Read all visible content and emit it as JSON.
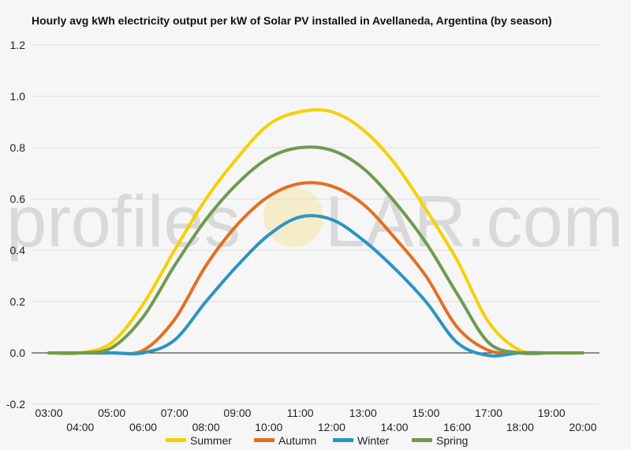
{
  "watermark": {
    "text_left": "profiles",
    "text_right": "LAR.com"
  },
  "chart_data": {
    "type": "line",
    "title": "Hourly avg kWh electricity output per kW of Solar PV installed in Avellaneda, Argentina (by season)",
    "xlabel": "",
    "ylabel": "",
    "x": [
      "03:00",
      "04:00",
      "05:00",
      "06:00",
      "07:00",
      "08:00",
      "09:00",
      "10:00",
      "11:00",
      "12:00",
      "13:00",
      "14:00",
      "15:00",
      "16:00",
      "17:00",
      "18:00",
      "19:00",
      "20:00"
    ],
    "x_tick_labels": [
      "03:00",
      "04:00",
      "05:00",
      "06:00",
      "07:00",
      "08:00",
      "09:00",
      "10:00",
      "11:00",
      "12:00",
      "13:00",
      "14:00",
      "15:00",
      "16:00",
      "17:00",
      "18:00",
      "19:00",
      "20:00"
    ],
    "ylim": [
      -0.2,
      1.2
    ],
    "y_ticks": [
      "-0.2",
      "0.0",
      "0.2",
      "0.4",
      "0.6",
      "0.8",
      "1.0",
      "1.2"
    ],
    "grid": true,
    "legend_position": "bottom",
    "series": [
      {
        "name": "Summer",
        "color": "#f7d000",
        "values": [
          0,
          0,
          0.04,
          0.19,
          0.4,
          0.6,
          0.76,
          0.89,
          0.94,
          0.94,
          0.87,
          0.74,
          0.56,
          0.36,
          0.12,
          0.01,
          0,
          0
        ]
      },
      {
        "name": "Autumn",
        "color": "#e36f22",
        "values": [
          0,
          0,
          0,
          0.01,
          0.13,
          0.34,
          0.5,
          0.61,
          0.66,
          0.65,
          0.58,
          0.45,
          0.3,
          0.1,
          0.01,
          0,
          0,
          0
        ]
      },
      {
        "name": "Winter",
        "color": "#2a95c4",
        "values": [
          0,
          0,
          0,
          0,
          0.05,
          0.2,
          0.34,
          0.46,
          0.53,
          0.52,
          0.44,
          0.33,
          0.2,
          0.04,
          -0.01,
          0,
          0,
          0
        ]
      },
      {
        "name": "Spring",
        "color": "#6f9a50",
        "values": [
          0,
          0,
          0.02,
          0.14,
          0.34,
          0.52,
          0.66,
          0.76,
          0.8,
          0.79,
          0.72,
          0.59,
          0.43,
          0.23,
          0.04,
          0,
          0,
          0
        ]
      }
    ]
  }
}
